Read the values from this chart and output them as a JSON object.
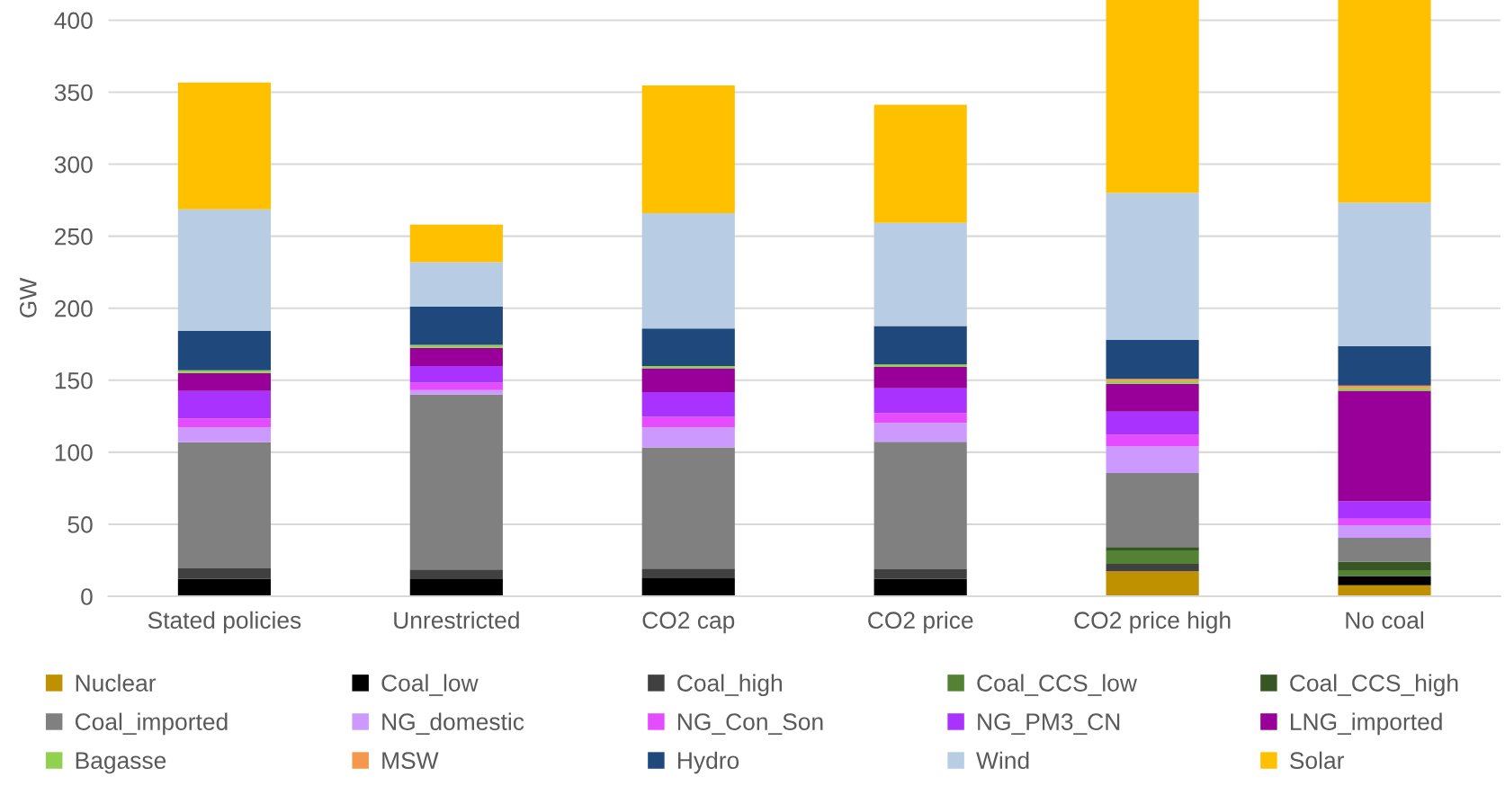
{
  "chart_data": {
    "type": "bar",
    "stacked": true,
    "ylabel": "GW",
    "categories": [
      "Stated policies",
      "Unrestricted",
      "CO2 cap",
      "CO2 price",
      "CO2 price high",
      "No coal"
    ],
    "ylim": [
      0,
      414
    ],
    "yticks": [
      0,
      50,
      100,
      150,
      200,
      250,
      300,
      350,
      400
    ],
    "grid": "y",
    "legend": "bottom",
    "series": [
      {
        "name": "Nuclear",
        "color": "#bf9000",
        "values": [
          0,
          0,
          0,
          0,
          17.3,
          7.7
        ]
      },
      {
        "name": "Coal_low",
        "color": "#000000",
        "values": [
          12.1,
          11.9,
          12.5,
          12.1,
          0,
          6.3
        ]
      },
      {
        "name": "Coal_high",
        "color": "#404040",
        "values": [
          7.3,
          6.6,
          6.7,
          6.6,
          5.2,
          0
        ]
      },
      {
        "name": "Coal_CCS_low",
        "color": "#548235",
        "values": [
          0,
          0,
          0,
          0,
          9.4,
          4.1
        ]
      },
      {
        "name": "Coal_CCS_high",
        "color": "#375623",
        "values": [
          0,
          0,
          0,
          0,
          2.3,
          5.9
        ]
      },
      {
        "name": "Coal_imported",
        "color": "#808080",
        "values": [
          87.5,
          121.5,
          84.1,
          88.6,
          51.4,
          16.6
        ]
      },
      {
        "name": "NG_domestic",
        "color": "#cc99ff",
        "values": [
          10.4,
          3.1,
          14.0,
          13.1,
          18.4,
          8.8
        ]
      },
      {
        "name": "NG_Con_Son",
        "color": "#e64cff",
        "values": [
          6.2,
          5.2,
          7.3,
          6.9,
          8.3,
          4.4
        ]
      },
      {
        "name": "NG_PM3_CN",
        "color": "#a932ff",
        "values": [
          19.0,
          11.5,
          17.1,
          17.1,
          15.8,
          12.0
        ]
      },
      {
        "name": "LNG_imported",
        "color": "#990099",
        "values": [
          12.5,
          12.7,
          16.6,
          14.8,
          19.4,
          76.9
        ]
      },
      {
        "name": "Bagasse",
        "color": "#92d050",
        "values": [
          1.9,
          2.1,
          1.5,
          1.8,
          1.9,
          1.7
        ]
      },
      {
        "name": "MSW",
        "color": "#f4994b",
        "values": [
          0,
          0,
          0,
          0,
          1.6,
          1.9
        ]
      },
      {
        "name": "Hydro",
        "color": "#1f497d",
        "values": [
          27.3,
          26.7,
          26.2,
          26.7,
          26.9,
          27.5
        ]
      },
      {
        "name": "Wind",
        "color": "#b8cce4",
        "values": [
          84.5,
          30.7,
          80.0,
          71.6,
          102.1,
          99.5
        ]
      },
      {
        "name": "Solar",
        "color": "#ffc000",
        "values": [
          88.0,
          26.0,
          88.7,
          82.0,
          134.0,
          140.7
        ]
      }
    ]
  }
}
